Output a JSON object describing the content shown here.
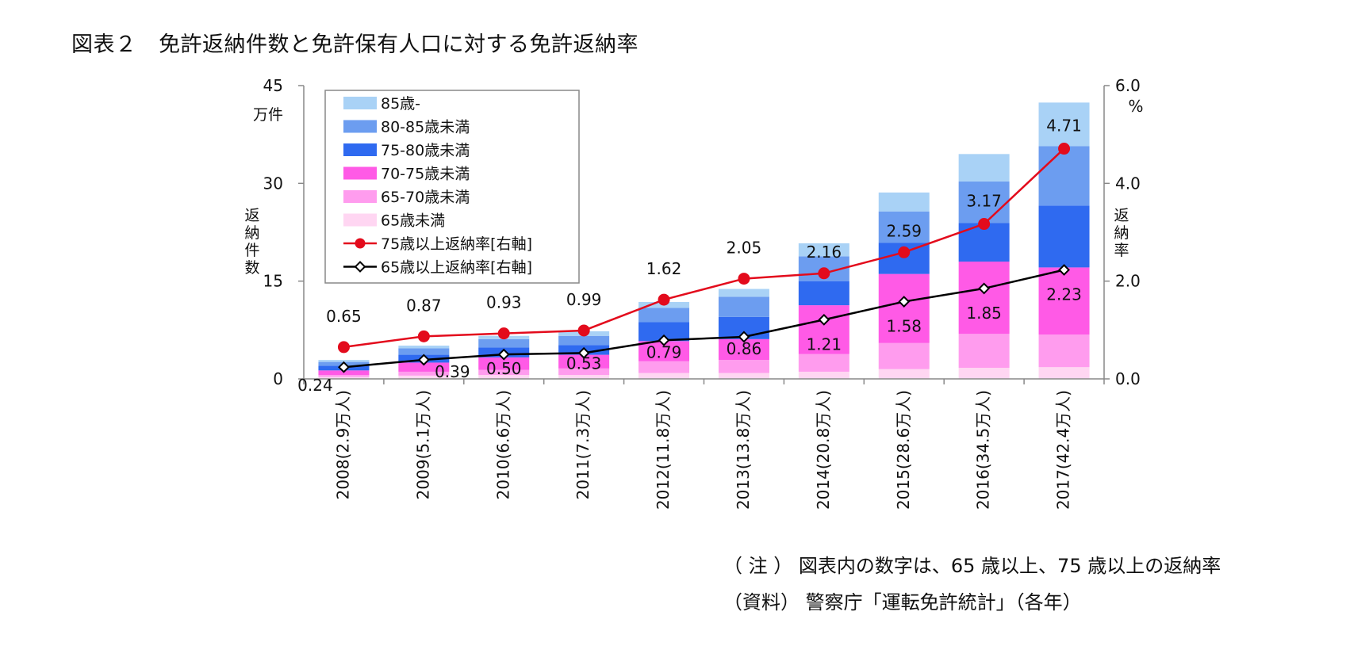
{
  "title": "図表２　免許返納件数と免許保有人口に対する免許返納率",
  "notes": {
    "note": "（ 注 ） 図表内の数字は、65 歳以上、75 歳以上の返納率",
    "source": "（資料） 警察庁「運転免許統計」（各年）"
  },
  "chart_data": {
    "type": "bar",
    "stacked": true,
    "title": "図表２　免許返納件数と免許保有人口に対する免許返納率",
    "categories": [
      "2008(2.9万人)",
      "2009(5.1万人)",
      "2010(6.6万人)",
      "2011(7.3万人)",
      "2012(11.8万人)",
      "2013(13.8万人)",
      "2014(20.8万人)",
      "2015(28.6万人)",
      "2016(34.5万人)",
      "2017(42.4万人)"
    ],
    "ylabel_left": "返納件数",
    "y_unit_left": "万件",
    "ylim_left": [
      0,
      45
    ],
    "yticks_left": [
      "0",
      "15",
      "30",
      "45"
    ],
    "ylabel_right": "返納率",
    "y_unit_right": "%",
    "ylim_right": [
      0,
      6
    ],
    "yticks_right": [
      "0.0",
      "2.0",
      "4.0",
      "6.0"
    ],
    "series": [
      {
        "name": "65歳未満",
        "color": "#ffd6f2",
        "values": [
          0.3,
          0.5,
          0.6,
          0.6,
          0.9,
          0.9,
          1.1,
          1.5,
          1.7,
          1.8
        ]
      },
      {
        "name": "65-70歳未満",
        "color": "#ff9cee",
        "values": [
          0.3,
          0.6,
          0.8,
          1.0,
          1.8,
          2.0,
          2.7,
          4.0,
          5.2,
          5.0
        ]
      },
      {
        "name": "70-75歳未満",
        "color": "#ff5ae6",
        "values": [
          0.7,
          1.4,
          1.9,
          2.1,
          3.1,
          3.2,
          7.5,
          10.6,
          11.1,
          10.3
        ]
      },
      {
        "name": "75-80歳未満",
        "color": "#2f6af0",
        "values": [
          0.7,
          1.2,
          1.5,
          1.5,
          2.9,
          3.4,
          3.7,
          4.8,
          5.9,
          9.5
        ]
      },
      {
        "name": "80-85歳未満",
        "color": "#6c9df0",
        "values": [
          0.6,
          1.0,
          1.3,
          1.4,
          2.2,
          3.1,
          3.8,
          4.8,
          6.4,
          9.1
        ]
      },
      {
        "name": "85歳-",
        "color": "#a9d2f6",
        "values": [
          0.3,
          0.4,
          0.5,
          0.7,
          0.9,
          1.2,
          2.0,
          2.9,
          4.2,
          6.7
        ]
      }
    ],
    "lines": [
      {
        "name": "75歳以上返納率[右軸]",
        "color": "#e30b1c",
        "values": [
          0.65,
          0.87,
          0.93,
          0.99,
          1.62,
          2.05,
          2.16,
          2.59,
          3.17,
          4.71
        ],
        "labels": [
          "0.65",
          "0.87",
          "0.93",
          "0.99",
          "1.62",
          "2.05",
          "2.16",
          "2.59",
          "3.17",
          "4.71"
        ]
      },
      {
        "name": "65歳以上返納率[右軸]",
        "color": "#000000",
        "values": [
          0.24,
          0.39,
          0.5,
          0.53,
          0.79,
          0.86,
          1.21,
          1.58,
          1.85,
          2.23
        ],
        "labels": [
          "0.24",
          "0.39",
          "0.50",
          "0.53",
          "0.79",
          "0.86",
          "1.21",
          "1.58",
          "1.85",
          "2.23"
        ]
      }
    ],
    "legend_position": "top-left"
  }
}
